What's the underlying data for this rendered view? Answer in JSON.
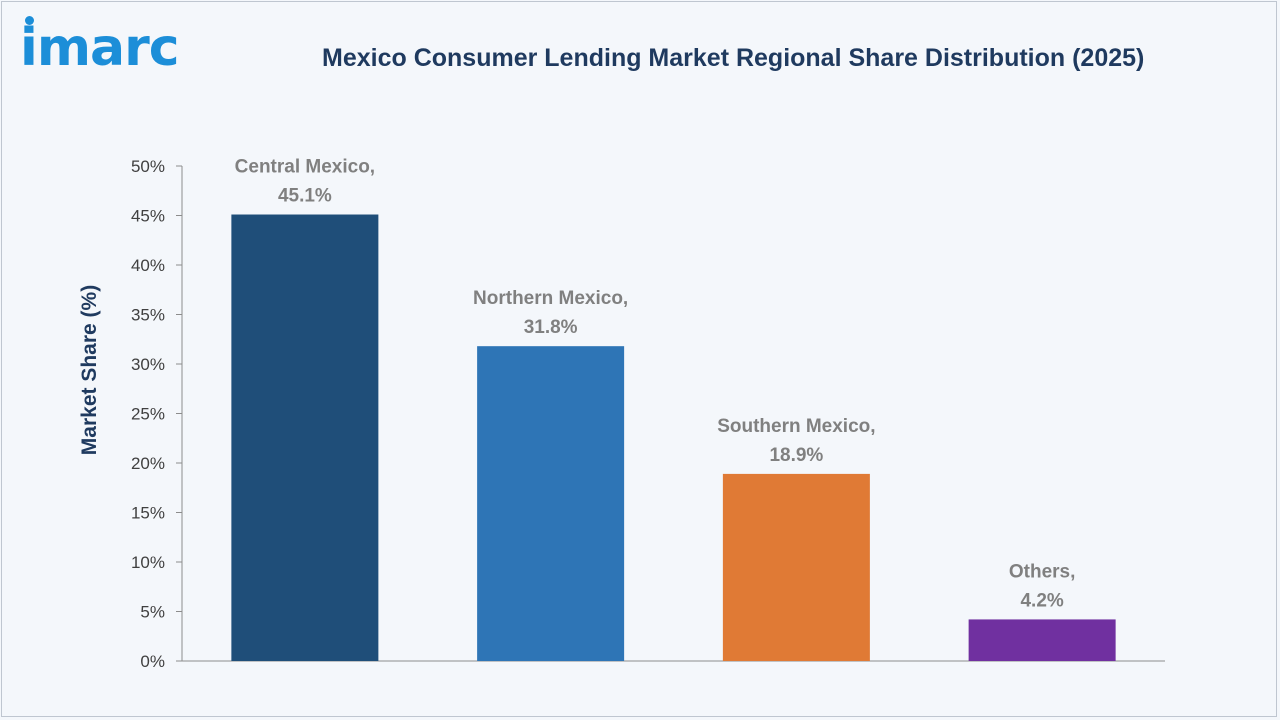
{
  "brand": {
    "logo_text": "imarc"
  },
  "chart_data": {
    "type": "bar",
    "title": "Mexico Consumer Lending Market Regional Share Distribution (2025)",
    "xlabel": "",
    "ylabel": "Market Share (%)",
    "ylim": [
      0,
      50
    ],
    "y_ticks": [
      0,
      5,
      10,
      15,
      20,
      25,
      30,
      35,
      40,
      45,
      50
    ],
    "y_tick_suffix": "%",
    "grid": false,
    "legend": "none",
    "categories": [
      "Central Mexico",
      "Northern Mexico",
      "Southern Mexico",
      "Others"
    ],
    "values": [
      45.1,
      31.8,
      18.9,
      4.2
    ],
    "colors": [
      "#1f4e79",
      "#2e75b6",
      "#e07a35",
      "#7030a0"
    ],
    "data_labels": [
      [
        "Central Mexico,",
        "45.1%"
      ],
      [
        "Northern Mexico,",
        "31.8%"
      ],
      [
        "Southern Mexico,",
        "18.9%"
      ],
      [
        "Others,",
        "4.2%"
      ]
    ]
  }
}
